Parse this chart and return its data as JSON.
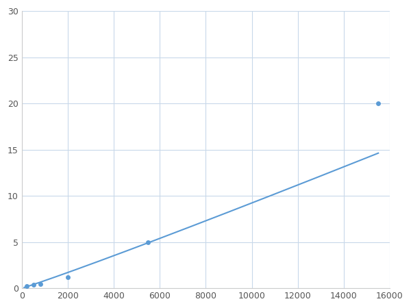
{
  "x_points": [
    200,
    500,
    800,
    2000,
    5500,
    15500
  ],
  "y_points": [
    0.25,
    0.35,
    0.45,
    1.2,
    5.0,
    20.0
  ],
  "line_color": "#5b9bd5",
  "marker_color": "#5b9bd5",
  "marker_size": 5,
  "line_width": 1.5,
  "xlim": [
    0,
    16000
  ],
  "ylim": [
    0,
    30
  ],
  "xticks": [
    0,
    2000,
    4000,
    6000,
    8000,
    10000,
    12000,
    14000,
    16000
  ],
  "yticks": [
    0,
    5,
    10,
    15,
    20,
    25,
    30
  ],
  "grid_color": "#c8d8ea",
  "background_color": "#ffffff",
  "figsize": [
    6.0,
    4.5
  ],
  "dpi": 100
}
